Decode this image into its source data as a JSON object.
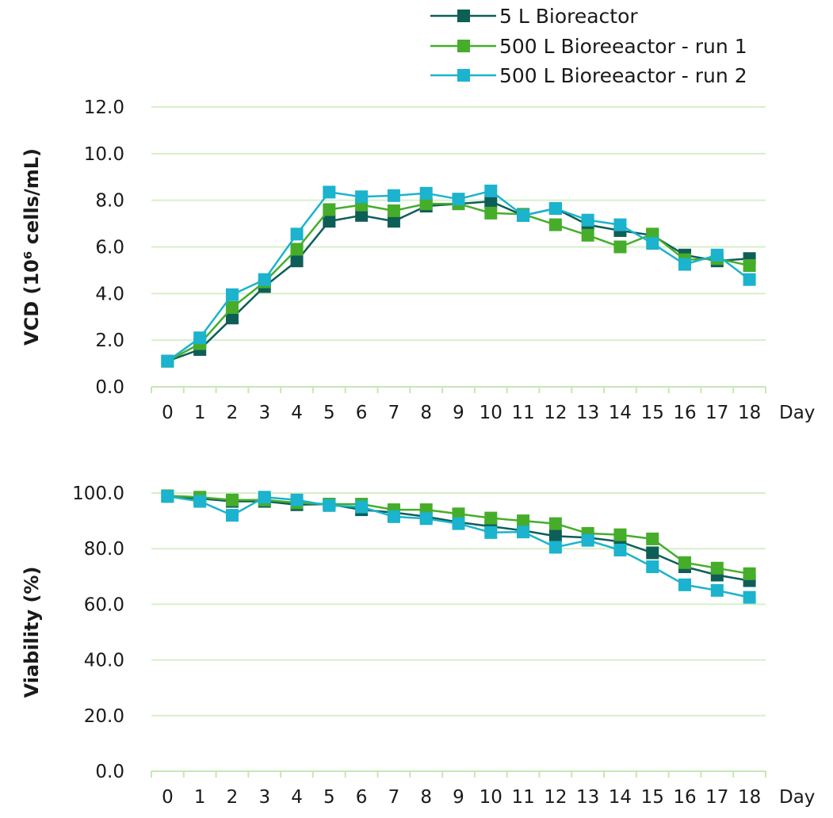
{
  "chart_data": [
    {
      "type": "line",
      "ylabel": "VCD (10⁶ cells/mL)",
      "x_unit_label": "Day",
      "categories": [
        "0",
        "1",
        "2",
        "3",
        "4",
        "5",
        "6",
        "7",
        "8",
        "9",
        "10",
        "11",
        "12",
        "13",
        "14",
        "15",
        "16",
        "17",
        "18"
      ],
      "y_ticks": [
        "0.0",
        "2.0",
        "4.0",
        "6.0",
        "8.0",
        "10.0",
        "12.0"
      ],
      "ylim": [
        0,
        12
      ],
      "grid": "horizontal",
      "series": [
        {
          "name": "5 L Bioreactor",
          "color": "#0e5e58",
          "values": [
            1.1,
            1.6,
            2.95,
            4.3,
            5.4,
            7.1,
            7.35,
            7.1,
            7.75,
            7.85,
            7.95,
            7.35,
            7.65,
            6.95,
            6.7,
            6.5,
            5.65,
            5.4,
            5.5
          ]
        },
        {
          "name": "500 L Bioreeactor - run 1",
          "color": "#46ad2a",
          "values": [
            1.1,
            1.85,
            3.4,
            4.5,
            5.9,
            7.6,
            7.8,
            7.55,
            7.85,
            7.85,
            7.45,
            7.4,
            6.95,
            6.5,
            6.0,
            6.55,
            5.45,
            5.5,
            5.2
          ]
        },
        {
          "name": "500 L Bioreeactor - run 2",
          "color": "#1bb3cd",
          "values": [
            1.1,
            2.1,
            3.95,
            4.6,
            6.55,
            8.35,
            8.15,
            8.2,
            8.3,
            8.05,
            8.4,
            7.35,
            7.65,
            7.15,
            6.95,
            6.15,
            5.25,
            5.65,
            4.6
          ]
        }
      ]
    },
    {
      "type": "line",
      "ylabel": "Viability (%)",
      "x_unit_label": "Day",
      "categories": [
        "0",
        "1",
        "2",
        "3",
        "4",
        "5",
        "6",
        "7",
        "8",
        "9",
        "10",
        "11",
        "12",
        "13",
        "14",
        "15",
        "16",
        "17",
        "18"
      ],
      "y_ticks": [
        "0.0",
        "20.0",
        "40.0",
        "60.0",
        "80.0",
        "100.0"
      ],
      "ylim": [
        0,
        100
      ],
      "grid": "horizontal",
      "series": [
        {
          "name": "5 L Bioreactor",
          "color": "#0e5e58",
          "values": [
            98.8,
            98.0,
            97.0,
            97.0,
            95.8,
            96.0,
            94.0,
            93.0,
            91.5,
            89.5,
            88.0,
            86.5,
            84.5,
            84.0,
            82.5,
            78.5,
            73.5,
            70.5,
            68.5
          ]
        },
        {
          "name": "500 L Bioreeactor - run 1",
          "color": "#46ad2a",
          "values": [
            99.0,
            98.5,
            97.5,
            97.5,
            96.5,
            96.0,
            96.0,
            94.0,
            94.0,
            92.5,
            91.0,
            90.0,
            89.0,
            85.5,
            85.0,
            83.5,
            75.0,
            73.0,
            71.0
          ]
        },
        {
          "name": "500 L Bioreeactor - run 2",
          "color": "#1bb3cd",
          "values": [
            98.8,
            97.0,
            92.0,
            98.5,
            97.5,
            95.5,
            95.0,
            91.5,
            90.8,
            89.0,
            85.8,
            86.0,
            80.5,
            83.0,
            79.5,
            73.5,
            67.0,
            65.0,
            62.5
          ]
        }
      ]
    }
  ]
}
